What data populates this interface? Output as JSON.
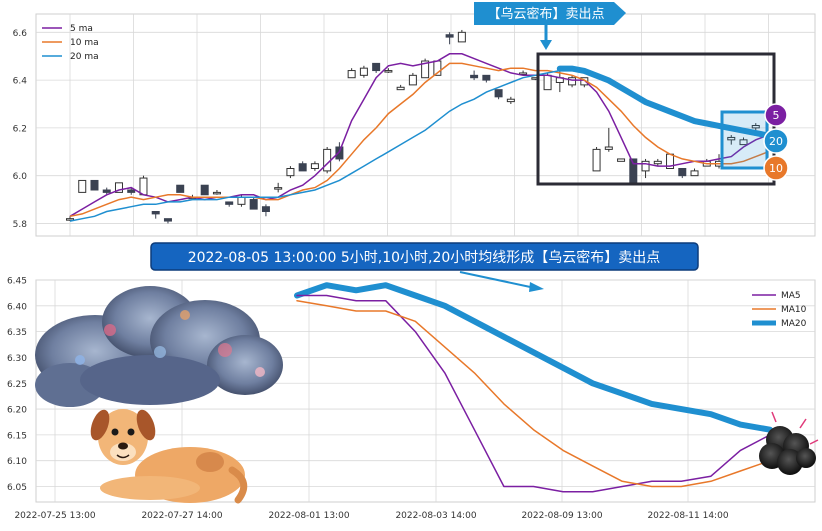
{
  "colors": {
    "ma5": "#7b1fa2",
    "ma10": "#e8782a",
    "ma20": "#1f8fd0",
    "candle_down": "#3b4252",
    "grid": "#d9d9d9",
    "callout_bg": "#1f8fd0",
    "box_dark": "#2b2b35",
    "box_blue": "#1f8fd0",
    "banner_bg": "#1565c0"
  },
  "annotations": {
    "top_callout": "【乌云密布】卖出点",
    "banner": "2022-08-05 13:00:00 5小时,10小时,20小时均线形成【乌云密布】卖出点",
    "badge_ma5": "5",
    "badge_ma20": "20",
    "badge_ma10": "10"
  },
  "illustrations": [
    "storm-cloud",
    "dog",
    "small-dark-cloud"
  ],
  "chart_data": [
    {
      "type": "candlestick",
      "legend": [
        "5 ma",
        "10 ma",
        "20 ma"
      ],
      "legend_position": "top-left",
      "ylim": [
        5.76,
        6.66
      ],
      "yticks": [
        "5.8",
        "6.0",
        "6.2",
        "6.4",
        "6.6"
      ],
      "grid": true,
      "candles": [
        [
          5.82,
          5.83,
          5.81,
          5.82
        ],
        [
          5.93,
          5.98,
          5.93,
          5.98
        ],
        [
          5.98,
          5.98,
          5.94,
          5.94
        ],
        [
          5.94,
          5.95,
          5.92,
          5.93
        ],
        [
          5.93,
          5.97,
          5.93,
          5.97
        ],
        [
          5.94,
          5.95,
          5.92,
          5.93
        ],
        [
          5.92,
          6.0,
          5.92,
          5.99
        ],
        [
          5.85,
          5.85,
          5.82,
          5.84
        ],
        [
          5.82,
          5.82,
          5.8,
          5.81
        ],
        [
          5.96,
          5.96,
          5.93,
          5.93
        ],
        [
          5.91,
          5.92,
          5.9,
          5.91
        ],
        [
          5.96,
          5.96,
          5.92,
          5.92
        ],
        [
          5.93,
          5.94,
          5.92,
          5.93
        ],
        [
          5.89,
          5.89,
          5.87,
          5.88
        ],
        [
          5.88,
          5.92,
          5.87,
          5.91
        ],
        [
          5.9,
          5.91,
          5.86,
          5.86
        ],
        [
          5.87,
          5.88,
          5.83,
          5.85
        ],
        [
          5.95,
          5.97,
          5.93,
          5.95
        ],
        [
          6.0,
          6.04,
          5.99,
          6.03
        ],
        [
          6.05,
          6.06,
          6.02,
          6.02
        ],
        [
          6.03,
          6.06,
          6.02,
          6.05
        ],
        [
          6.02,
          6.12,
          6.01,
          6.11
        ],
        [
          6.12,
          6.14,
          6.06,
          6.07
        ],
        [
          6.41,
          6.45,
          6.41,
          6.44
        ],
        [
          6.42,
          6.46,
          6.41,
          6.45
        ],
        [
          6.47,
          6.47,
          6.43,
          6.44
        ],
        [
          6.44,
          6.45,
          6.43,
          6.44
        ],
        [
          6.36,
          6.38,
          6.36,
          6.37
        ],
        [
          6.38,
          6.43,
          6.38,
          6.42
        ],
        [
          6.41,
          6.49,
          6.41,
          6.48
        ],
        [
          6.42,
          6.48,
          6.42,
          6.48
        ],
        [
          6.59,
          6.6,
          6.55,
          6.58
        ],
        [
          6.56,
          6.61,
          6.56,
          6.6
        ],
        [
          6.42,
          6.44,
          6.4,
          6.41
        ],
        [
          6.42,
          6.42,
          6.39,
          6.4
        ],
        [
          6.36,
          6.36,
          6.32,
          6.33
        ],
        [
          6.31,
          6.33,
          6.3,
          6.32
        ],
        [
          6.43,
          6.44,
          6.42,
          6.43
        ],
        [
          6.41,
          6.41,
          6.4,
          6.41
        ],
        [
          6.36,
          6.43,
          6.36,
          6.42
        ],
        [
          6.39,
          6.44,
          6.35,
          6.41
        ],
        [
          6.38,
          6.42,
          6.37,
          6.41
        ],
        [
          6.38,
          6.41,
          6.37,
          6.41
        ],
        [
          6.02,
          6.12,
          6.02,
          6.11
        ],
        [
          6.11,
          6.2,
          6.1,
          6.12
        ],
        [
          6.06,
          6.07,
          6.06,
          6.07
        ],
        [
          6.07,
          6.07,
          5.96,
          5.97
        ],
        [
          6.02,
          6.07,
          5.99,
          6.06
        ],
        [
          6.05,
          6.07,
          6.04,
          6.06
        ],
        [
          6.03,
          6.09,
          6.03,
          6.09
        ],
        [
          6.03,
          6.03,
          5.99,
          6.0
        ],
        [
          6.0,
          6.03,
          6.0,
          6.02
        ],
        [
          6.04,
          6.07,
          6.04,
          6.06
        ],
        [
          6.04,
          6.09,
          6.03,
          6.06
        ],
        [
          6.15,
          6.17,
          6.13,
          6.16
        ],
        [
          6.13,
          6.16,
          6.13,
          6.15
        ],
        [
          6.2,
          6.22,
          6.19,
          6.21
        ],
        [
          6.17,
          6.19,
          6.15,
          6.16
        ]
      ],
      "series": [
        {
          "name": "5 ma",
          "values": [
            5.83,
            5.86,
            5.89,
            5.92,
            5.94,
            5.95,
            5.92,
            5.91,
            5.89,
            5.9,
            5.91,
            5.9,
            5.91,
            5.91,
            5.92,
            5.92,
            5.9,
            5.91,
            5.94,
            5.96,
            6.0,
            6.05,
            6.1,
            6.23,
            6.32,
            6.41,
            6.46,
            6.47,
            6.46,
            6.47,
            6.48,
            6.51,
            6.51,
            6.49,
            6.47,
            6.45,
            6.43,
            6.42,
            6.42,
            6.42,
            6.41,
            6.4,
            6.4,
            6.35,
            6.27,
            6.16,
            6.05,
            6.05,
            6.04,
            6.04,
            6.05,
            6.06,
            6.06,
            6.07,
            6.08,
            6.12,
            6.15,
            6.17
          ]
        },
        {
          "name": "10 ma",
          "values": [
            5.83,
            5.84,
            5.86,
            5.88,
            5.9,
            5.91,
            5.9,
            5.91,
            5.92,
            5.92,
            5.91,
            5.91,
            5.91,
            5.91,
            5.91,
            5.91,
            5.9,
            5.9,
            5.92,
            5.94,
            5.95,
            5.98,
            6.03,
            6.09,
            6.15,
            6.2,
            6.26,
            6.3,
            6.34,
            6.39,
            6.43,
            6.47,
            6.47,
            6.46,
            6.45,
            6.44,
            6.45,
            6.45,
            6.44,
            6.44,
            6.43,
            6.42,
            6.4,
            6.37,
            6.32,
            6.27,
            6.21,
            6.16,
            6.12,
            6.09,
            6.07,
            6.06,
            6.05,
            6.05,
            6.05,
            6.06,
            6.08,
            6.1
          ]
        },
        {
          "name": "20 ma",
          "values": [
            5.81,
            5.82,
            5.83,
            5.85,
            5.86,
            5.87,
            5.88,
            5.88,
            5.89,
            5.89,
            5.9,
            5.9,
            5.9,
            5.91,
            5.91,
            5.91,
            5.91,
            5.91,
            5.92,
            5.93,
            5.94,
            5.96,
            5.98,
            6.01,
            6.04,
            6.07,
            6.1,
            6.13,
            6.16,
            6.19,
            6.23,
            6.27,
            6.3,
            6.32,
            6.35,
            6.37,
            6.39,
            6.41,
            6.42,
            6.43,
            6.44,
            6.44,
            6.43,
            6.41,
            6.39,
            6.36,
            6.33,
            6.3,
            6.28,
            6.26,
            6.24,
            6.22,
            6.21,
            6.2,
            6.19,
            6.18,
            6.17,
            6.16
          ]
        }
      ]
    },
    {
      "type": "line",
      "legend": [
        "MA5",
        "MA10",
        "MA20"
      ],
      "legend_position": "top-right",
      "ylim": [
        6.02,
        6.45
      ],
      "yticks": [
        "6.05",
        "6.10",
        "6.15",
        "6.20",
        "6.25",
        "6.30",
        "6.35",
        "6.40",
        "6.45"
      ],
      "xticks": [
        "2022-07-25 13:00",
        "2022-07-27 14:00",
        "2022-08-01 13:00",
        "2022-08-03 14:00",
        "2022-08-09 13:00",
        "2022-08-11 14:00"
      ],
      "grid": true,
      "series": [
        {
          "name": "MA5",
          "values": [
            6.42,
            6.42,
            6.41,
            6.41,
            6.35,
            6.27,
            6.16,
            6.05,
            6.05,
            6.04,
            6.04,
            6.05,
            6.06,
            6.06,
            6.07,
            6.12,
            6.15
          ]
        },
        {
          "name": "MA10",
          "values": [
            6.41,
            6.4,
            6.39,
            6.39,
            6.37,
            6.32,
            6.27,
            6.21,
            6.16,
            6.12,
            6.09,
            6.06,
            6.05,
            6.05,
            6.06,
            6.08,
            6.1
          ]
        },
        {
          "name": "MA20",
          "values": [
            6.42,
            6.44,
            6.43,
            6.44,
            6.42,
            6.4,
            6.37,
            6.34,
            6.31,
            6.28,
            6.25,
            6.23,
            6.21,
            6.2,
            6.19,
            6.17,
            6.16
          ]
        }
      ]
    }
  ]
}
